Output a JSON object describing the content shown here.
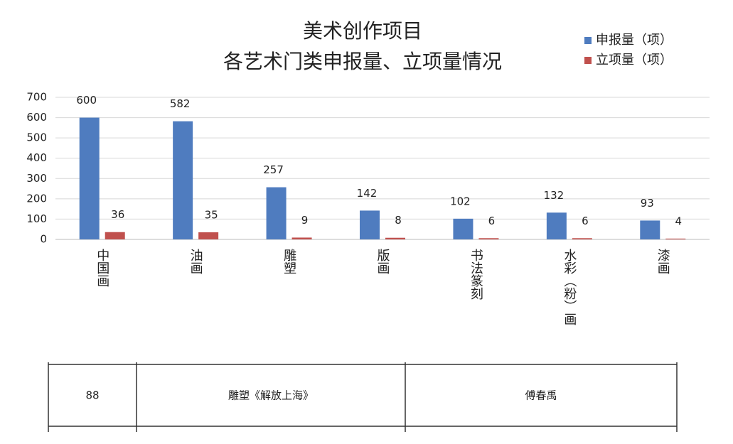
{
  "chart_data": {
    "type": "bar",
    "title": "美术创作项目",
    "subtitle": "各艺术门类申报量、立项量情况",
    "categories": [
      "中国画",
      "油画",
      "雕塑",
      "版画",
      "书法篆刻",
      "水彩（粉）画",
      "漆画"
    ],
    "series": [
      {
        "name": "申报量（项）",
        "color": "#4f7cbf",
        "values": [
          600,
          582,
          257,
          142,
          102,
          132,
          93
        ]
      },
      {
        "name": "立项量（项）",
        "color": "#c0504d",
        "values": [
          36,
          35,
          9,
          8,
          6,
          6,
          4
        ]
      }
    ],
    "ylim": [
      0,
      700
    ],
    "yticks": [
      0,
      100,
      200,
      300,
      400,
      500,
      600,
      700
    ],
    "grid": true,
    "legend": "top-right"
  },
  "table": {
    "rows": [
      [
        "88",
        "雕塑《解放上海》",
        "傅春禹"
      ]
    ]
  }
}
